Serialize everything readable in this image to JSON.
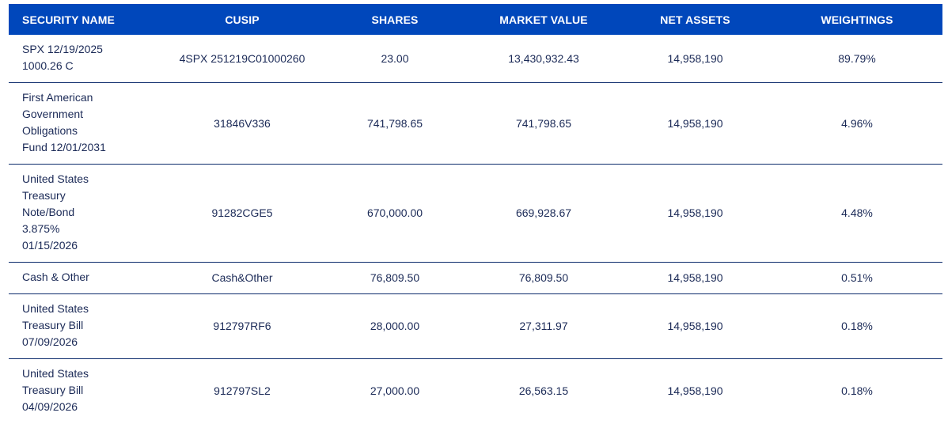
{
  "table": {
    "columns": [
      "SECURITY NAME",
      "CUSIP",
      "SHARES",
      "MARKET VALUE",
      "NET ASSETS",
      "WEIGHTINGS"
    ],
    "rows": [
      {
        "security_name": "SPX 12/19/2025\n1000.26 C",
        "cusip": "4SPX 251219C01000260",
        "shares": "23.00",
        "market_value": "13,430,932.43",
        "net_assets": "14,958,190",
        "weighting": "89.79%"
      },
      {
        "security_name": "First American\nGovernment\nObligations\nFund 12/01/2031",
        "cusip": "31846V336",
        "shares": "741,798.65",
        "market_value": "741,798.65",
        "net_assets": "14,958,190",
        "weighting": "4.96%"
      },
      {
        "security_name": "United States\nTreasury\nNote/Bond\n3.875%\n01/15/2026",
        "cusip": "91282CGE5",
        "shares": "670,000.00",
        "market_value": "669,928.67",
        "net_assets": "14,958,190",
        "weighting": "4.48%"
      },
      {
        "security_name": "Cash & Other",
        "cusip": "Cash&Other",
        "shares": "76,809.50",
        "market_value": "76,809.50",
        "net_assets": "14,958,190",
        "weighting": "0.51%"
      },
      {
        "security_name": "United States\nTreasury Bill\n07/09/2026",
        "cusip": "912797RF6",
        "shares": "28,000.00",
        "market_value": "27,311.97",
        "net_assets": "14,958,190",
        "weighting": "0.18%"
      },
      {
        "security_name": "United States\nTreasury Bill\n04/09/2026",
        "cusip": "912797SL2",
        "shares": "27,000.00",
        "market_value": "26,563.15",
        "net_assets": "14,958,190",
        "weighting": "0.18%"
      }
    ]
  },
  "colors": {
    "header_bg": "#0047bb",
    "header_text": "#ffffff",
    "body_text": "#1b2a57",
    "row_divider": "#0b2a6b"
  }
}
